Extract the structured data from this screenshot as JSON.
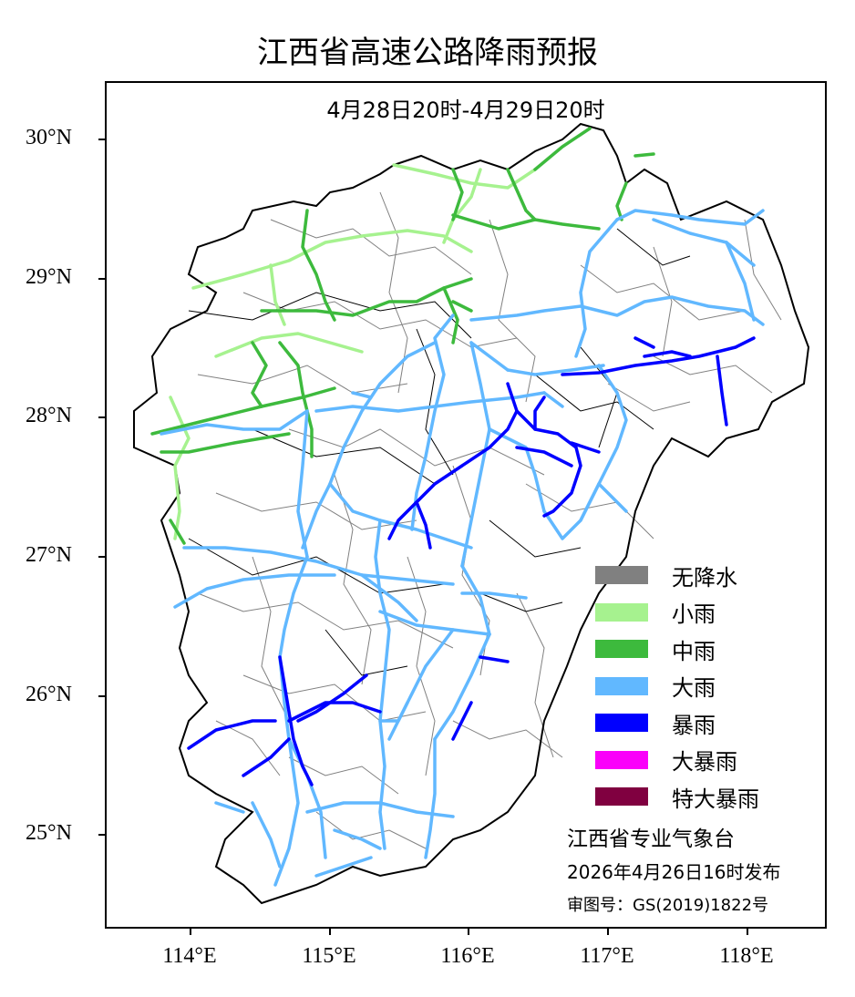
{
  "title": "江西省高速公路降雨预报",
  "subtitle": "4月28日20时-4月29日20时",
  "lat_labels": [
    "30°N",
    "29°N",
    "28°N",
    "27°N",
    "26°N",
    "25°N"
  ],
  "lon_labels": [
    "114°E",
    "115°E",
    "116°E",
    "117°E",
    "118°E"
  ],
  "legend": [
    {
      "label": "无降水",
      "color": "#808080"
    },
    {
      "label": "小雨",
      "color": "#a6f28f"
    },
    {
      "label": "中雨",
      "color": "#3dba3d"
    },
    {
      "label": "大雨",
      "color": "#61b8ff"
    },
    {
      "label": "暴雨",
      "color": "#0000ff"
    },
    {
      "label": "大暴雨",
      "color": "#fa00fa"
    },
    {
      "label": "特大暴雨",
      "color": "#800040"
    }
  ],
  "issuer": "江西省专业气象台",
  "issue_time": "2026年4月26日16时发布",
  "review_number": "审图号：GS(2019)1822号",
  "colors": {
    "light": "#a6f28f",
    "moderate": "#3dba3d",
    "heavy": "#61b8ff",
    "storm": "#0000ff",
    "county_border": "#808080",
    "province_border": "#000000"
  }
}
